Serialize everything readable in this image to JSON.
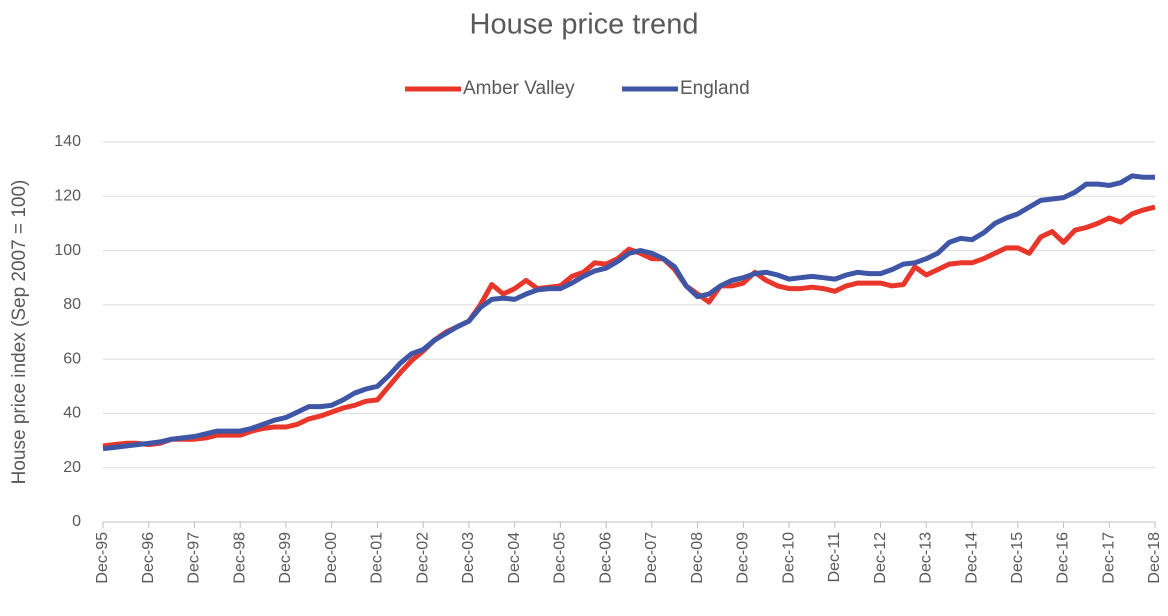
{
  "chart_data": {
    "type": "line",
    "title": "House price trend",
    "y_label": "House price index (Sep 2007 = 100)",
    "categories": [
      "Dec-95",
      null,
      null,
      null,
      "Dec-96",
      null,
      null,
      null,
      "Dec-97",
      null,
      null,
      null,
      "Dec-98",
      null,
      null,
      null,
      "Dec-99",
      null,
      null,
      null,
      "Dec-00",
      null,
      null,
      null,
      "Dec-01",
      null,
      null,
      null,
      "Dec-02",
      null,
      null,
      null,
      "Dec-03",
      null,
      null,
      null,
      "Dec-04",
      null,
      null,
      null,
      "Dec-05",
      null,
      null,
      null,
      "Dec-06",
      null,
      null,
      null,
      "Dec-07",
      null,
      null,
      null,
      "Dec-08",
      null,
      null,
      null,
      "Dec-09",
      null,
      null,
      null,
      "Dec-10",
      null,
      null,
      null,
      "Dec-11",
      null,
      null,
      null,
      "Dec-12",
      null,
      null,
      null,
      "Dec-13",
      null,
      null,
      null,
      "Dec-14",
      null,
      null,
      null,
      "Dec-15",
      null,
      null,
      null,
      "Dec-16",
      null,
      null,
      null,
      "Dec-17",
      null,
      null,
      null,
      "Dec-18"
    ],
    "series": [
      {
        "name": "Amber Valley",
        "color": "#e8372a",
        "values": [
          28,
          28.5,
          29,
          29,
          28.5,
          29,
          30.5,
          30.5,
          30.5,
          31,
          32,
          32,
          32,
          33.5,
          34.5,
          35,
          35,
          36,
          38,
          39,
          40.5,
          42,
          43,
          44.5,
          45,
          50,
          55,
          59.5,
          63,
          67,
          70,
          72,
          74,
          80,
          87.5,
          84,
          86,
          89,
          86,
          86.5,
          87,
          90.5,
          92,
          95.5,
          95,
          97,
          100.5,
          99,
          97,
          97,
          93,
          87,
          84,
          81,
          87,
          87,
          88,
          92,
          89,
          87,
          86,
          86,
          86.5,
          86,
          85,
          87,
          88,
          88,
          88,
          87,
          87.5,
          94,
          91,
          93,
          95,
          95.5,
          95.5,
          97,
          99,
          101,
          101,
          99,
          105,
          107,
          103,
          107.5,
          108.5,
          110,
          112,
          110.5,
          113.5,
          115,
          116
        ]
      },
      {
        "name": "England",
        "color": "#3f55a5",
        "values": [
          27,
          27.5,
          28,
          28.5,
          29,
          29.5,
          30.5,
          31,
          31.5,
          32.5,
          33.5,
          33.5,
          33.5,
          34.5,
          36,
          37.5,
          38.5,
          40.5,
          42.5,
          42.5,
          43,
          45,
          47.5,
          49,
          50,
          54,
          58.5,
          62,
          63.5,
          67,
          69.5,
          72,
          74,
          79,
          82,
          82.5,
          82,
          84,
          85.5,
          86,
          86,
          88,
          90.5,
          92.5,
          93.5,
          96,
          99,
          100,
          99,
          97,
          94,
          87,
          83,
          84,
          87,
          89,
          90,
          91.5,
          92,
          91,
          89.5,
          90,
          90.5,
          90,
          89.5,
          91,
          92,
          91.5,
          91.5,
          93,
          95,
          95.5,
          97,
          99,
          103,
          104.5,
          104,
          106.5,
          110,
          112,
          113.5,
          116,
          118.5,
          119,
          119.5,
          121.5,
          124.5,
          124.5,
          124,
          125,
          127.5,
          127,
          127
        ]
      }
    ],
    "ylim": [
      0,
      140
    ],
    "yticks": [
      0,
      20,
      40,
      60,
      80,
      100,
      120,
      140
    ],
    "grid": true,
    "legend": "top"
  }
}
